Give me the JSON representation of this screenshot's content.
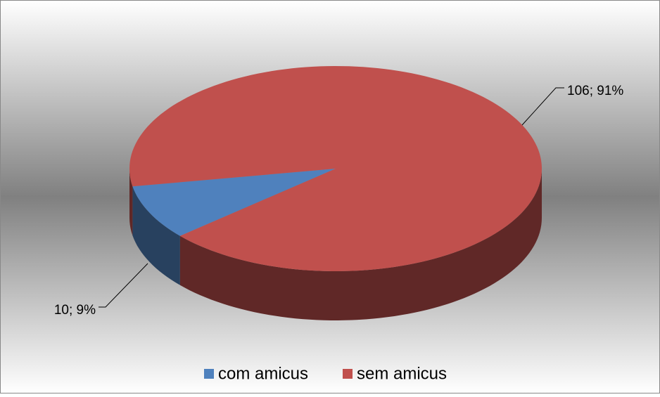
{
  "chart_data": {
    "type": "pie",
    "pie_style": "3d",
    "categories": [
      "com amicus",
      "sem amicus"
    ],
    "values": [
      10,
      106
    ],
    "value_labels": [
      "10; 9%",
      "106; 91%"
    ],
    "colors": [
      "#4f81bd",
      "#c0504d"
    ],
    "legend": "bottom"
  }
}
